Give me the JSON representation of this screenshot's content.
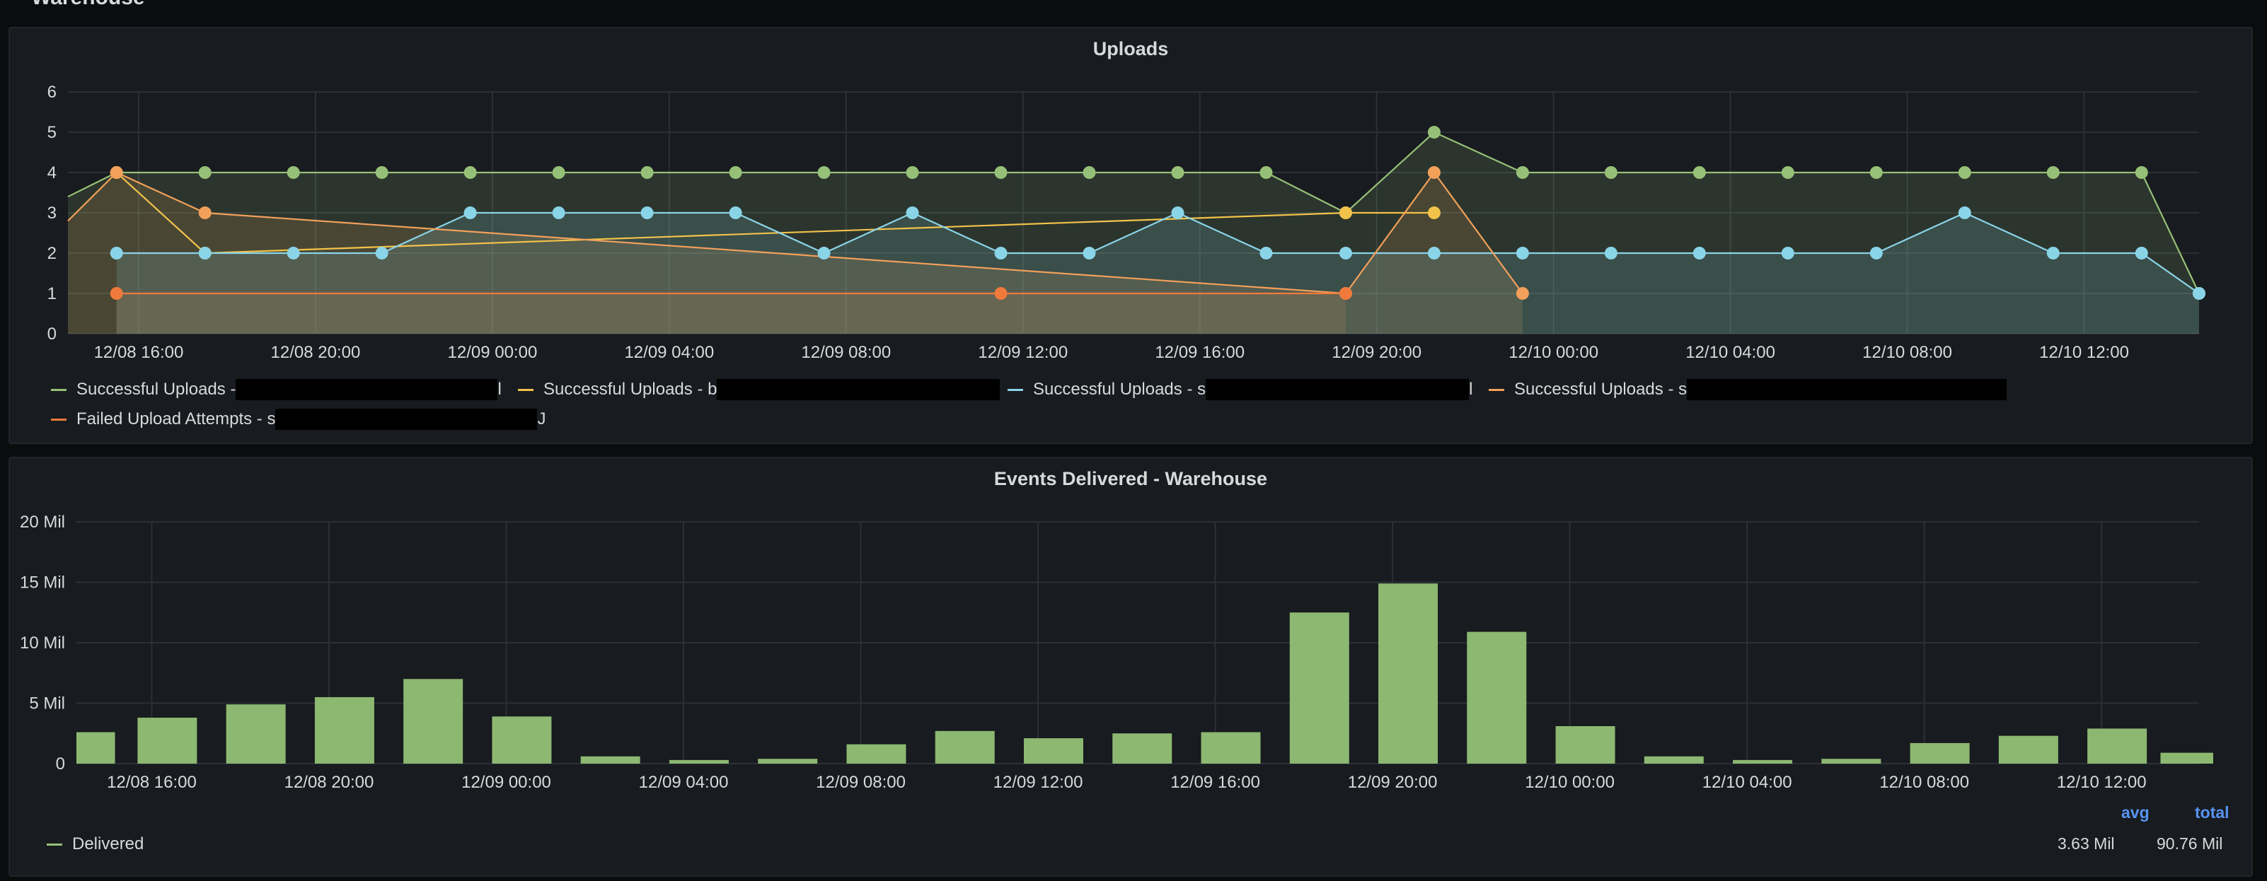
{
  "dashboard": {
    "row_title": "Warehouse"
  },
  "colors": {
    "green": "#96c077",
    "yellow": "#f2c24a",
    "blue": "#8ad4e8",
    "orange": "#f2a05a",
    "red_orange": "#f07a3c",
    "bar": "#8cb871",
    "grid": "#2c3036",
    "axis_text": "#d8d9da"
  },
  "uploads_panel": {
    "title": "Uploads",
    "legend": [
      {
        "label": "Successful Uploads - ",
        "redacted": true,
        "tail": "l",
        "color": "#96c077"
      },
      {
        "label": "Successful Uploads - b",
        "redacted": true,
        "tail": "",
        "color": "#f2c24a"
      },
      {
        "label": "Successful Uploads - s",
        "redacted": true,
        "tail": "l",
        "color": "#8ad4e8"
      },
      {
        "label": "Successful Uploads - s",
        "redacted": true,
        "tail": "",
        "color": "#f2a05a"
      },
      {
        "label": "Failed Upload Attempts - s",
        "redacted": true,
        "tail": "J",
        "color": "#f07a3c"
      }
    ]
  },
  "events_panel": {
    "title": "Events Delivered - Warehouse",
    "legend": [
      {
        "label": "Delivered",
        "color": "#96c077"
      }
    ],
    "stats": {
      "avg_label": "avg",
      "total_label": "total",
      "avg_value": "3.63 Mil",
      "total_value": "90.76 Mil"
    }
  },
  "chart_data": [
    {
      "type": "line",
      "title": "Uploads",
      "x_unit": "hours since 12/08 16:00",
      "x_ticks": [
        "12/08 16:00",
        "12/08 20:00",
        "12/09 00:00",
        "12/09 04:00",
        "12/09 08:00",
        "12/09 12:00",
        "12/09 16:00",
        "12/09 20:00",
        "12/10 00:00",
        "12/10 04:00",
        "12/10 08:00",
        "12/10 12:00"
      ],
      "y_ticks": [
        "0",
        "1",
        "2",
        "3",
        "4",
        "5",
        "6"
      ],
      "ylim": [
        0,
        6
      ],
      "xlim": [
        -1.6,
        46.6
      ],
      "grid": true,
      "legend_position": "bottom",
      "series": [
        {
          "name": "Successful Uploads - (redacted)",
          "color": "#96c077",
          "fill": true,
          "points": [
            [
              -1.6,
              3.4
            ],
            [
              -0.5,
              4
            ],
            [
              1.5,
              4
            ],
            [
              3.5,
              4
            ],
            [
              5.5,
              4
            ],
            [
              7.5,
              4
            ],
            [
              9.5,
              4
            ],
            [
              11.5,
              4
            ],
            [
              13.5,
              4
            ],
            [
              15.5,
              4
            ],
            [
              17.5,
              4
            ],
            [
              19.5,
              4
            ],
            [
              21.5,
              4
            ],
            [
              23.5,
              4
            ],
            [
              25.5,
              4
            ],
            [
              27.3,
              3
            ],
            [
              29.3,
              5
            ],
            [
              31.3,
              4
            ],
            [
              33.3,
              4
            ],
            [
              35.3,
              4
            ],
            [
              37.3,
              4
            ],
            [
              39.3,
              4
            ],
            [
              41.3,
              4
            ],
            [
              43.3,
              4
            ],
            [
              45.3,
              4
            ],
            [
              46.6,
              1
            ]
          ]
        },
        {
          "name": "Successful Uploads - b(redacted)",
          "color": "#f2c24a",
          "fill": false,
          "points": [
            [
              -0.5,
              4
            ],
            [
              1.5,
              2
            ],
            [
              27.3,
              3
            ],
            [
              29.3,
              3
            ]
          ]
        },
        {
          "name": "Successful Uploads - s(redacted)",
          "color": "#8ad4e8",
          "fill": true,
          "points": [
            [
              -0.5,
              2
            ],
            [
              1.5,
              2
            ],
            [
              3.5,
              2
            ],
            [
              5.5,
              2
            ],
            [
              7.5,
              3
            ],
            [
              9.5,
              3
            ],
            [
              11.5,
              3
            ],
            [
              13.5,
              3
            ],
            [
              15.5,
              2
            ],
            [
              17.5,
              3
            ],
            [
              19.5,
              2
            ],
            [
              21.5,
              2
            ],
            [
              23.5,
              3
            ],
            [
              25.5,
              2
            ],
            [
              27.3,
              2
            ],
            [
              29.3,
              2
            ],
            [
              31.3,
              2
            ],
            [
              33.3,
              2
            ],
            [
              35.3,
              2
            ],
            [
              37.3,
              2
            ],
            [
              39.3,
              2
            ],
            [
              41.3,
              3
            ],
            [
              43.3,
              2
            ],
            [
              45.3,
              2
            ],
            [
              46.6,
              1
            ]
          ]
        },
        {
          "name": "Successful Uploads - s(redacted)",
          "color": "#f2a05a",
          "fill": true,
          "points": [
            [
              -1.6,
              2.8
            ],
            [
              -0.5,
              4
            ],
            [
              1.5,
              3
            ],
            [
              27.3,
              1
            ],
            [
              29.3,
              4
            ],
            [
              31.3,
              1
            ]
          ]
        },
        {
          "name": "Failed Upload Attempts - s(redacted)",
          "color": "#f07a3c",
          "fill": true,
          "points": [
            [
              -0.5,
              1
            ],
            [
              19.5,
              1
            ],
            [
              27.3,
              1
            ]
          ]
        }
      ]
    },
    {
      "type": "bar",
      "title": "Events Delivered - Warehouse",
      "x_unit": "hours since 12/08 16:00",
      "x_ticks": [
        "12/08 16:00",
        "12/08 20:00",
        "12/09 00:00",
        "12/09 04:00",
        "12/09 08:00",
        "12/09 12:00",
        "12/09 16:00",
        "12/09 20:00",
        "12/10 00:00",
        "12/10 04:00",
        "12/10 08:00",
        "12/10 12:00"
      ],
      "y_ticks": [
        "0",
        "5 Mil",
        "10 Mil",
        "15 Mil",
        "20 Mil"
      ],
      "ylim": [
        0,
        20
      ],
      "y_unit": "Mil",
      "xlim": [
        -1.7,
        46.2
      ],
      "grid": true,
      "legend_position": "bottom-left",
      "series": [
        {
          "name": "Delivered",
          "color": "#8cb871",
          "x": [
            -1.5,
            0.35,
            2.35,
            4.35,
            6.35,
            8.35,
            10.35,
            12.35,
            14.35,
            16.35,
            18.35,
            20.35,
            22.35,
            24.35,
            26.35,
            28.35,
            30.35,
            32.35,
            34.35,
            36.35,
            38.35,
            40.35,
            42.35,
            44.35,
            46.0
          ],
          "values": [
            2.6,
            3.8,
            4.9,
            5.5,
            7.0,
            3.9,
            0.6,
            0.3,
            0.4,
            1.6,
            2.7,
            2.1,
            2.5,
            2.6,
            12.5,
            14.9,
            10.9,
            3.1,
            0.6,
            0.3,
            0.4,
            1.7,
            2.3,
            2.9,
            0.9
          ]
        }
      ]
    }
  ]
}
